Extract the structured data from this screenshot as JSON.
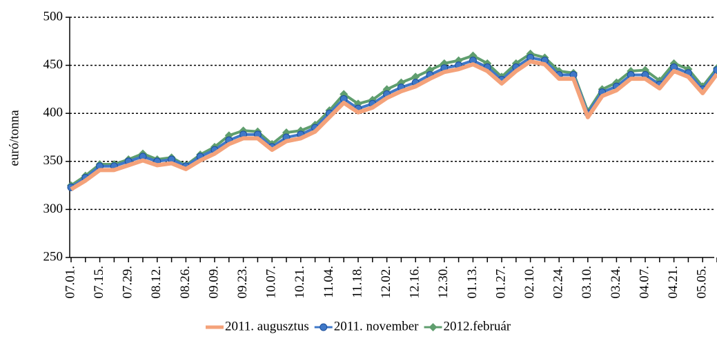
{
  "chart_data": {
    "type": "line",
    "ylabel": "euró/tonna",
    "categories": [
      "07.01.",
      null,
      "07.15.",
      null,
      "07.29.",
      null,
      "08.12.",
      null,
      "08.26.",
      null,
      "09.09.",
      null,
      "09.23.",
      null,
      "10.07.",
      null,
      "10.21.",
      null,
      "11.04.",
      null,
      "11.18.",
      null,
      "12.02.",
      null,
      "12.16.",
      null,
      "12.30.",
      null,
      "01.13.",
      null,
      "01.27.",
      null,
      "02.10.",
      null,
      "02.24.",
      null,
      "03.10.",
      null,
      "03.24.",
      null,
      "04.07.",
      null,
      "04.21.",
      null,
      "05.05.",
      null
    ],
    "series": [
      {
        "name": "2012.február",
        "color": "#5f9e6e",
        "marker": "diamond",
        "values": [
          325,
          335,
          347,
          347,
          352,
          358,
          352,
          354,
          346,
          357,
          365,
          377,
          382,
          381,
          368,
          380,
          382,
          388,
          403,
          420,
          410,
          414,
          425,
          432,
          438,
          445,
          452,
          455,
          460,
          452,
          438,
          452,
          462,
          458,
          444,
          442,
          402,
          425,
          432,
          444,
          445,
          434,
          452,
          446,
          428,
          447
        ]
      },
      {
        "name": "2011. november",
        "color": "#3f78c8",
        "marker": "circle",
        "values": [
          323,
          333,
          345,
          345,
          350,
          355,
          350,
          352,
          345,
          355,
          362,
          372,
          378,
          378,
          365,
          375,
          378,
          385,
          400,
          415,
          405,
          410,
          420,
          427,
          432,
          440,
          447,
          450,
          455,
          448,
          435,
          448,
          458,
          455,
          440,
          440,
          400,
          422,
          428,
          440,
          440,
          430,
          448,
          442,
          425,
          445
        ]
      },
      {
        "name": "2011. augusztus",
        "color": "#f4a27a",
        "marker": "none",
        "values": [
          321,
          330,
          341,
          341,
          346,
          351,
          346,
          348,
          342,
          351,
          358,
          368,
          374,
          374,
          362,
          371,
          374,
          381,
          396,
          411,
          401,
          406,
          416,
          423,
          428,
          436,
          443,
          446,
          451,
          444,
          431,
          444,
          454,
          451,
          436,
          436,
          396,
          418,
          424,
          436,
          436,
          426,
          444,
          438,
          421,
          441
        ]
      }
    ],
    "ylim": [
      250,
      500
    ],
    "yticks": [
      250,
      300,
      350,
      400,
      450,
      500
    ],
    "grid": true,
    "legend": "bottom"
  }
}
